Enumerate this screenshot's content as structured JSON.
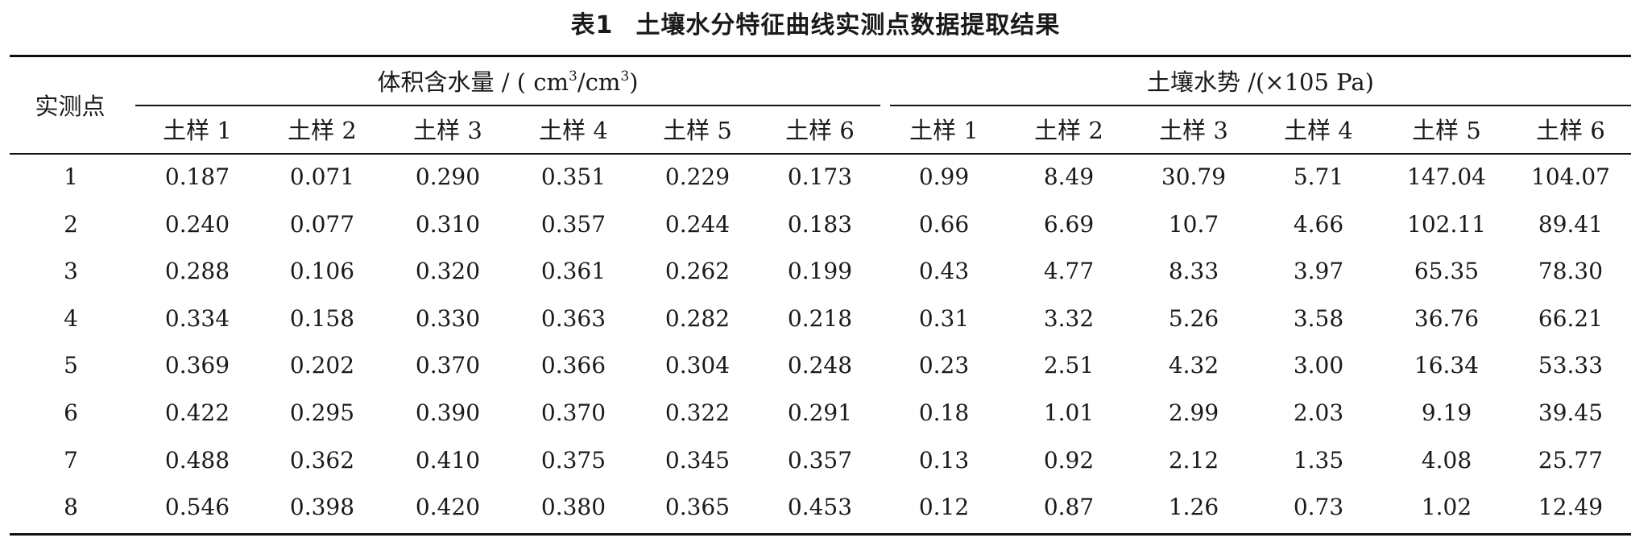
{
  "title": {
    "number": "表1",
    "text": "土壤水分特征曲线实测点数据提取结果"
  },
  "header": {
    "row_label": "实测点",
    "group_left": {
      "prefix": "体积含水量 / ( cm",
      "mid": "/cm",
      "exp": "3",
      "suffix": ")"
    },
    "group_right": "土壤水势 /(×105 Pa)",
    "samples": [
      "土样 1",
      "土样 2",
      "土样 3",
      "土样 4",
      "土样 5",
      "土样 6"
    ]
  },
  "rows": [
    {
      "point": "1",
      "water": [
        "0.187",
        "0.071",
        "0.290",
        "0.351",
        "0.229",
        "0.173"
      ],
      "potential": [
        "0.99",
        "8.49",
        "30.79",
        "5.71",
        "147.04",
        "104.07"
      ]
    },
    {
      "point": "2",
      "water": [
        "0.240",
        "0.077",
        "0.310",
        "0.357",
        "0.244",
        "0.183"
      ],
      "potential": [
        "0.66",
        "6.69",
        "10.7",
        "4.66",
        "102.11",
        "89.41"
      ]
    },
    {
      "point": "3",
      "water": [
        "0.288",
        "0.106",
        "0.320",
        "0.361",
        "0.262",
        "0.199"
      ],
      "potential": [
        "0.43",
        "4.77",
        "8.33",
        "3.97",
        "65.35",
        "78.30"
      ]
    },
    {
      "point": "4",
      "water": [
        "0.334",
        "0.158",
        "0.330",
        "0.363",
        "0.282",
        "0.218"
      ],
      "potential": [
        "0.31",
        "3.32",
        "5.26",
        "3.58",
        "36.76",
        "66.21"
      ]
    },
    {
      "point": "5",
      "water": [
        "0.369",
        "0.202",
        "0.370",
        "0.366",
        "0.304",
        "0.248"
      ],
      "potential": [
        "0.23",
        "2.51",
        "4.32",
        "3.00",
        "16.34",
        "53.33"
      ]
    },
    {
      "point": "6",
      "water": [
        "0.422",
        "0.295",
        "0.390",
        "0.370",
        "0.322",
        "0.291"
      ],
      "potential": [
        "0.18",
        "1.01",
        "2.99",
        "2.03",
        "9.19",
        "39.45"
      ]
    },
    {
      "point": "7",
      "water": [
        "0.488",
        "0.362",
        "0.410",
        "0.375",
        "0.345",
        "0.357"
      ],
      "potential": [
        "0.13",
        "0.92",
        "2.12",
        "1.35",
        "4.08",
        "25.77"
      ]
    },
    {
      "point": "8",
      "water": [
        "0.546",
        "0.398",
        "0.420",
        "0.380",
        "0.365",
        "0.453"
      ],
      "potential": [
        "0.12",
        "0.87",
        "1.26",
        "0.73",
        "1.02",
        "12.49"
      ]
    }
  ]
}
